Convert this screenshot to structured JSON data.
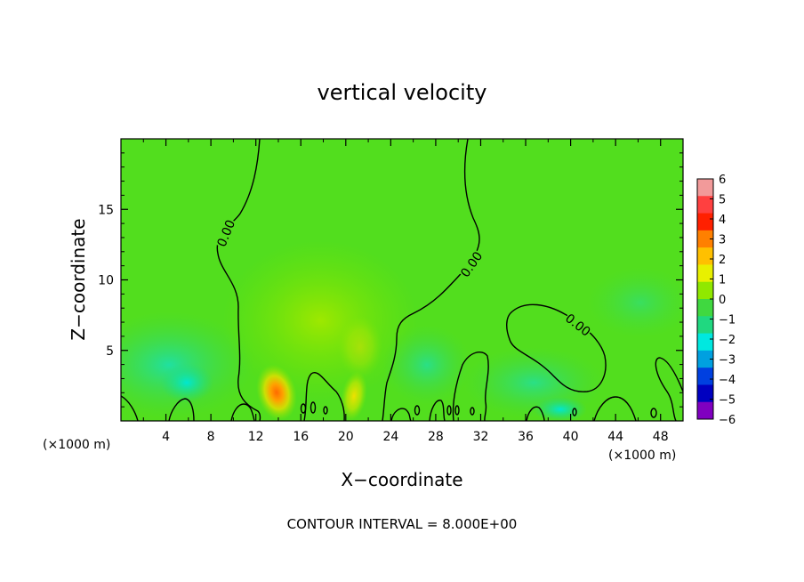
{
  "chart_data": {
    "type": "heatmap",
    "title": "vertical velocity",
    "xlabel": "X−coordinate",
    "ylabel": "Z−coordinate",
    "x_unit": "(×1000 m)",
    "xlim": [
      0,
      50
    ],
    "ylim": [
      0,
      20
    ],
    "x_ticks": [
      4,
      8,
      12,
      16,
      20,
      24,
      28,
      32,
      36,
      40,
      44,
      48
    ],
    "y_ticks": [
      5,
      10,
      15
    ],
    "colorbar": {
      "levels": [
        6,
        5,
        4,
        3,
        2,
        1,
        0,
        -1,
        -2,
        -3,
        -4,
        -5,
        -6
      ],
      "labels": [
        "6",
        "5",
        "4",
        "3",
        "2",
        "1",
        "0",
        "−1",
        "−2",
        "−3",
        "−4",
        "−5",
        "−6"
      ],
      "colors": [
        "#f29a9a",
        "#ff4040",
        "#ff2000",
        "#ff8000",
        "#ffc000",
        "#e8f000",
        "#90e800",
        "#40d840",
        "#20d880",
        "#00e8e0",
        "#00a0e0",
        "#0040e0",
        "#0000c0",
        "#8000c0"
      ]
    },
    "contour_labels": [
      "0.00",
      "0.00",
      "0.00"
    ],
    "contour_interval_text": "CONTOUR INTERVAL = 8.000E+00",
    "field_features": [
      {
        "x": 13.8,
        "z": 2.0,
        "w": 3.5
      },
      {
        "x": 20.5,
        "z": 2.0,
        "w": 2.0
      },
      {
        "x": 15,
        "z": 6,
        "w": 1.0
      },
      {
        "x": 4,
        "z": 3,
        "w": -1.2
      },
      {
        "x": 38,
        "z": 3,
        "w": -1.0
      }
    ]
  }
}
